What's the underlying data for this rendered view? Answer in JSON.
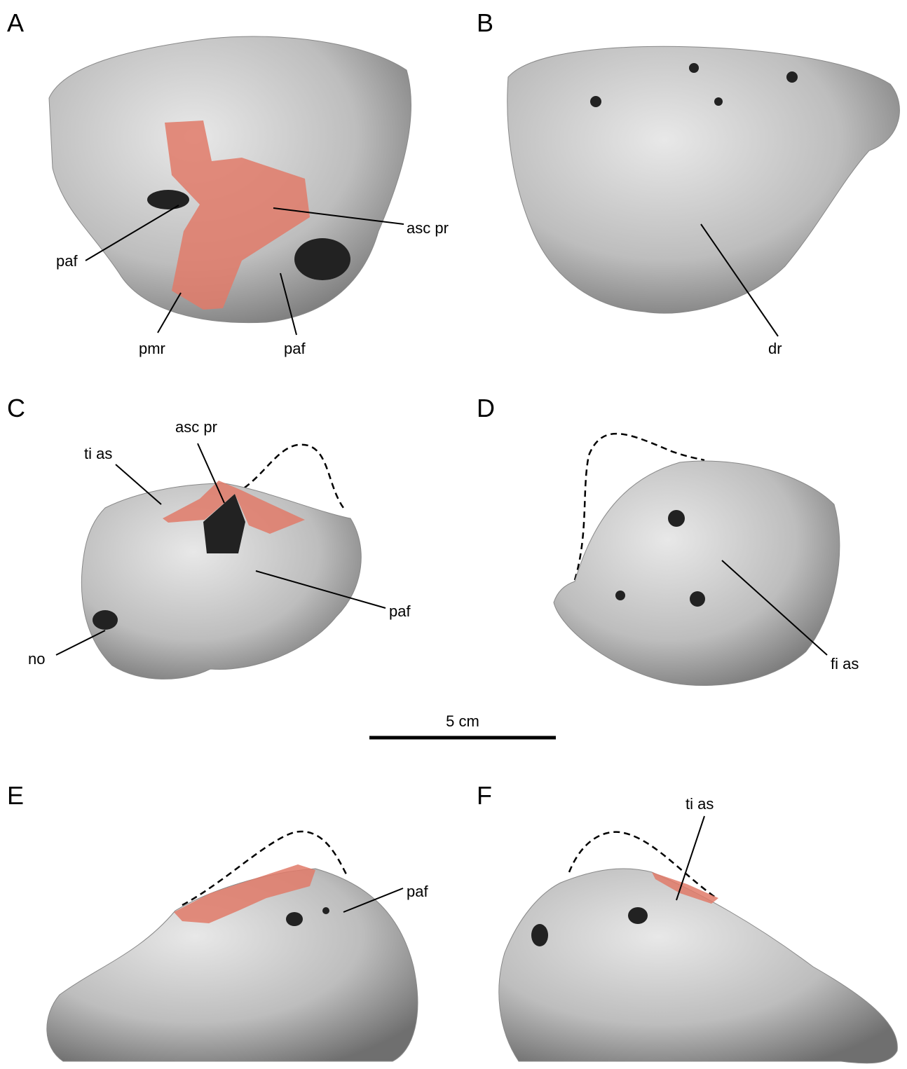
{
  "panels": [
    {
      "letter": "A",
      "labels": [
        "asc pr",
        "paf",
        "pmr",
        "paf"
      ]
    },
    {
      "letter": "B",
      "labels": [
        "dr"
      ]
    },
    {
      "letter": "C",
      "labels": [
        "asc pr",
        "ti as",
        "paf",
        "no"
      ]
    },
    {
      "letter": "D",
      "labels": [
        "fi as"
      ]
    },
    {
      "letter": "E",
      "labels": [
        "paf"
      ]
    },
    {
      "letter": "F",
      "labels": [
        "ti as"
      ]
    }
  ],
  "scale_bar": {
    "label": "5 cm"
  }
}
